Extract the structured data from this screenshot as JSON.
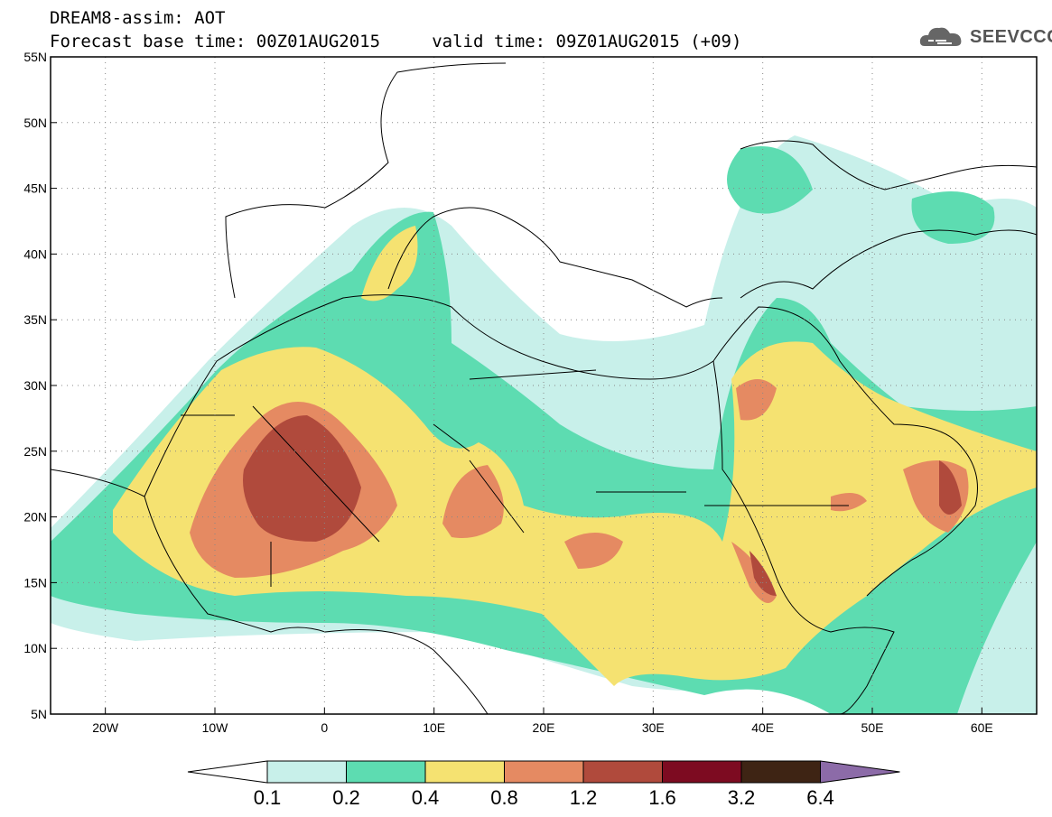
{
  "header": {
    "title": "DREAM8-assim: AOT",
    "subtitle": "Forecast base time: 00Z01AUG2015     valid time: 09Z01AUG2015 (+09)"
  },
  "logo": {
    "text": "SEEVCCC",
    "icon": "cloud-icon"
  },
  "map": {
    "lon_range": [
      -25,
      65
    ],
    "lat_range": [
      5,
      55
    ],
    "lat_ticks": [
      "55N",
      "50N",
      "45N",
      "40N",
      "35N",
      "30N",
      "25N",
      "20N",
      "15N",
      "10N",
      "5N"
    ],
    "lon_ticks": [
      "20W",
      "10W",
      "0",
      "10E",
      "20E",
      "30E",
      "40E",
      "50E",
      "60E"
    ],
    "grid": "dotted"
  },
  "colorbar": {
    "labels": [
      "0.1",
      "0.2",
      "0.4",
      "0.8",
      "1.2",
      "1.6",
      "3.2",
      "6.4"
    ],
    "colors": [
      "#c8f0ea",
      "#5ddcb1",
      "#f5e271",
      "#e58a62",
      "#b04a3c",
      "#7d0b21",
      "#3e2414"
    ],
    "upper_color": "#8c6ba8",
    "lower_color": "#ffffff"
  }
}
